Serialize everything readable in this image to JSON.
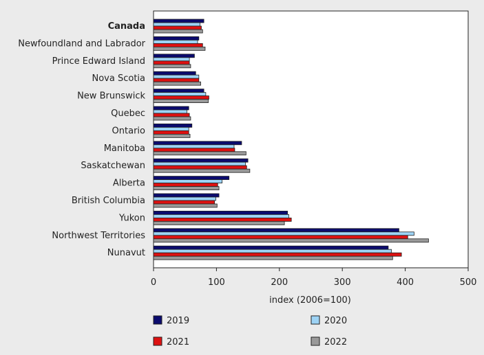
{
  "chart_data": {
    "type": "bar",
    "orientation": "horizontal",
    "categories": [
      "Canada",
      "Newfoundland and Labrador",
      "Prince Edward Island",
      "Nova Scotia",
      "New Brunswick",
      "Quebec",
      "Ontario",
      "Manitoba",
      "Saskatchewan",
      "Alberta",
      "British Columbia",
      "Yukon",
      "Northwest Territories",
      "Nunavut"
    ],
    "series": [
      {
        "name": "2019",
        "color": "#0b0b6e",
        "values": [
          80,
          72,
          65,
          67,
          80,
          56,
          61,
          140,
          150,
          120,
          104,
          213,
          390,
          373
        ]
      },
      {
        "name": "2020",
        "color": "#9dd3f5",
        "values": [
          74,
          70,
          57,
          72,
          83,
          53,
          56,
          128,
          146,
          109,
          99,
          215,
          414,
          378
        ]
      },
      {
        "name": "2021",
        "color": "#dd1111",
        "values": [
          76,
          78,
          57,
          72,
          88,
          57,
          56,
          129,
          148,
          102,
          97,
          219,
          404,
          394
        ]
      },
      {
        "name": "2022",
        "color": "#999999",
        "values": [
          78,
          82,
          59,
          75,
          87,
          59,
          58,
          147,
          153,
          104,
          101,
          208,
          437,
          380
        ]
      }
    ],
    "xlabel": "index (2006=100)",
    "ylabel": "",
    "xlim": [
      0,
      500
    ],
    "xticks": [
      0,
      100,
      200,
      300,
      400,
      500
    ],
    "xtick_labels": [
      "0",
      "100",
      "200",
      "300",
      "400",
      "500"
    ],
    "bold_categories": [
      "Canada"
    ],
    "grid": false,
    "legend_position": "bottom"
  }
}
